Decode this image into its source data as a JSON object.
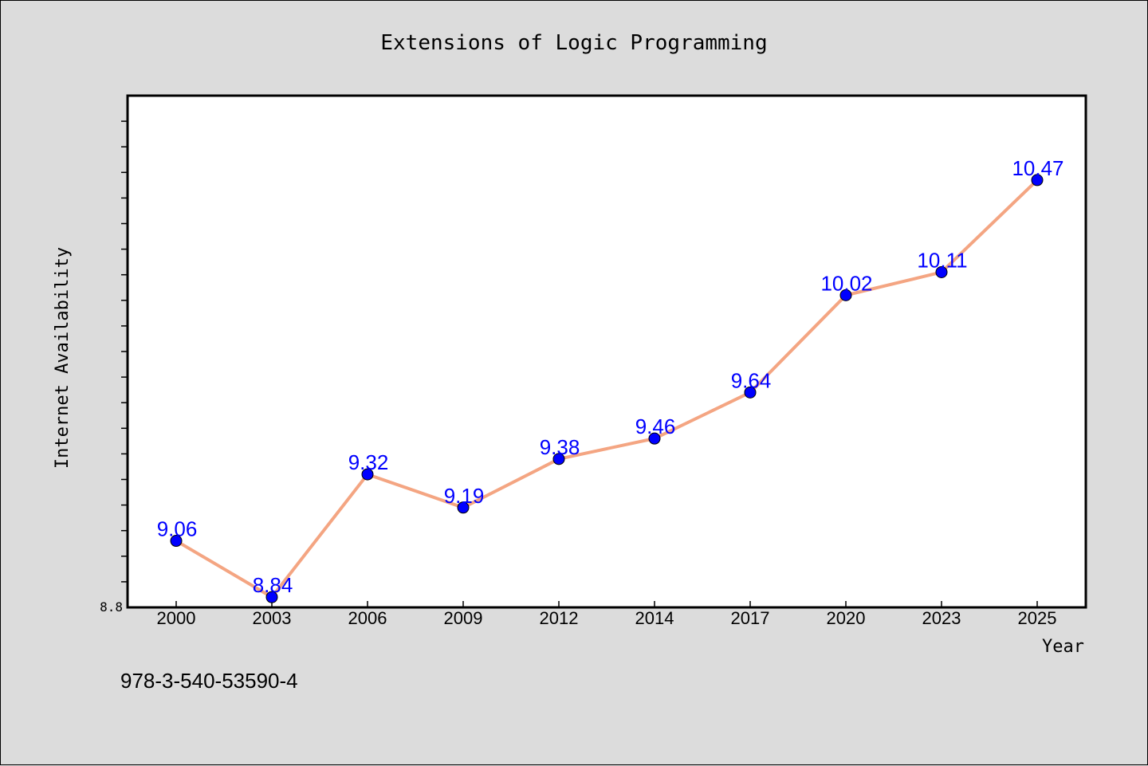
{
  "footer_text": "978-3-540-53590-4",
  "colors": {
    "background": "#dcdcdc",
    "plot_background": "#ffffff",
    "line": "#f4a582",
    "marker": "#0000ff",
    "data_label": "#0000ff"
  },
  "chart_data": {
    "type": "line",
    "title": "Extensions of Logic Programming",
    "xlabel": "Year",
    "ylabel": "Internet Availability",
    "categories": [
      "2000",
      "2003",
      "2006",
      "2009",
      "2012",
      "2014",
      "2017",
      "2020",
      "2023",
      "2025"
    ],
    "series": [
      {
        "values": [
          9.06,
          8.84,
          9.32,
          9.19,
          9.38,
          9.46,
          9.64,
          10.02,
          10.11,
          10.47
        ]
      }
    ],
    "data_labels": [
      "9.06",
      "8.84",
      "9.32",
      "9.19",
      "9.38",
      "9.46",
      "9.64",
      "10.02",
      "10.11",
      "10.47"
    ],
    "y_tick_label": "8.8",
    "ylim": [
      8.8,
      10.8
    ],
    "y_minor_step": 0.1,
    "grid": false,
    "legend": "none"
  }
}
